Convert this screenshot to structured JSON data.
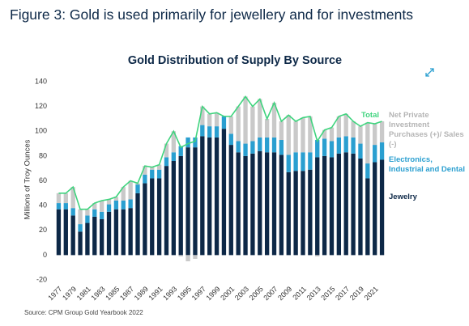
{
  "heading": "Figure 3: Gold is used primarily for jewellery and for investments",
  "source": "Source: CPM Group Gold Yearbook 2022",
  "chart_data": {
    "type": "stacked-bar",
    "title": "Gold Distribution of Supply By Source",
    "y_label": "Millions of Troy Ounces",
    "categories": [
      "1977",
      null,
      "1979",
      null,
      "1981",
      null,
      "1983",
      null,
      "1985",
      null,
      "1987",
      null,
      "1989",
      null,
      "1991",
      null,
      "1993",
      null,
      "1995",
      null,
      "1997",
      null,
      "1999",
      null,
      "2001",
      null,
      "2003",
      null,
      "2005",
      null,
      "2007",
      null,
      "2009",
      null,
      "2011",
      null,
      "2013",
      null,
      "2015",
      null,
      "2017",
      null,
      "2019",
      null,
      "2021",
      null
    ],
    "ylim": [
      -20,
      140
    ],
    "yticks": [
      -20,
      0,
      20,
      40,
      60,
      80,
      100,
      120,
      140
    ],
    "grid": false,
    "series": [
      {
        "name": "Jewelry",
        "color": "#0d2847",
        "values": [
          37,
          37,
          32,
          19,
          26,
          31,
          29,
          35,
          37,
          37,
          38,
          50,
          58,
          62,
          62,
          72,
          76,
          80,
          87,
          87,
          96,
          95,
          95,
          102,
          89,
          83,
          80,
          82,
          84,
          83,
          83,
          81,
          67,
          68,
          68,
          69,
          79,
          80,
          79,
          82,
          83,
          82,
          78,
          62,
          75,
          77
        ]
      },
      {
        "name": "Electronics, Industrial and Dental",
        "color": "#2a9fd0",
        "values": [
          5,
          5,
          6,
          6,
          6,
          6,
          6,
          6,
          7,
          7,
          7,
          7,
          7,
          7,
          7,
          7,
          7,
          8,
          8,
          8,
          9,
          9,
          9,
          10,
          9,
          9,
          10,
          10,
          11,
          12,
          12,
          12,
          14,
          15,
          15,
          14,
          14,
          14,
          13,
          13,
          13,
          13,
          12,
          12,
          14,
          14
        ]
      },
      {
        "name": "Net Private Investment Purchases (+)/ Sales (-)",
        "color": "#c9c9c9",
        "values": [
          8,
          8,
          17,
          12,
          5,
          5,
          9,
          4,
          3,
          11,
          15,
          1,
          7,
          2,
          4,
          11,
          17,
          -1,
          -5,
          -3,
          15,
          10,
          11,
          0,
          14,
          28,
          38,
          28,
          31,
          15,
          28,
          15,
          32,
          25,
          28,
          29,
          -1,
          7,
          11,
          17,
          18,
          13,
          14,
          33,
          17,
          17
        ]
      },
      {
        "name": "Total",
        "color": "#3fd47e",
        "type": "line",
        "values": [
          50,
          50,
          55,
          37,
          37,
          42,
          44,
          45,
          47,
          55,
          60,
          58,
          72,
          71,
          73,
          90,
          100,
          87,
          90,
          92,
          120,
          114,
          115,
          112,
          112,
          120,
          128,
          120,
          126,
          110,
          123,
          108,
          113,
          108,
          111,
          112,
          92,
          101,
          103,
          112,
          114,
          108,
          104,
          107,
          106,
          108
        ]
      }
    ]
  }
}
